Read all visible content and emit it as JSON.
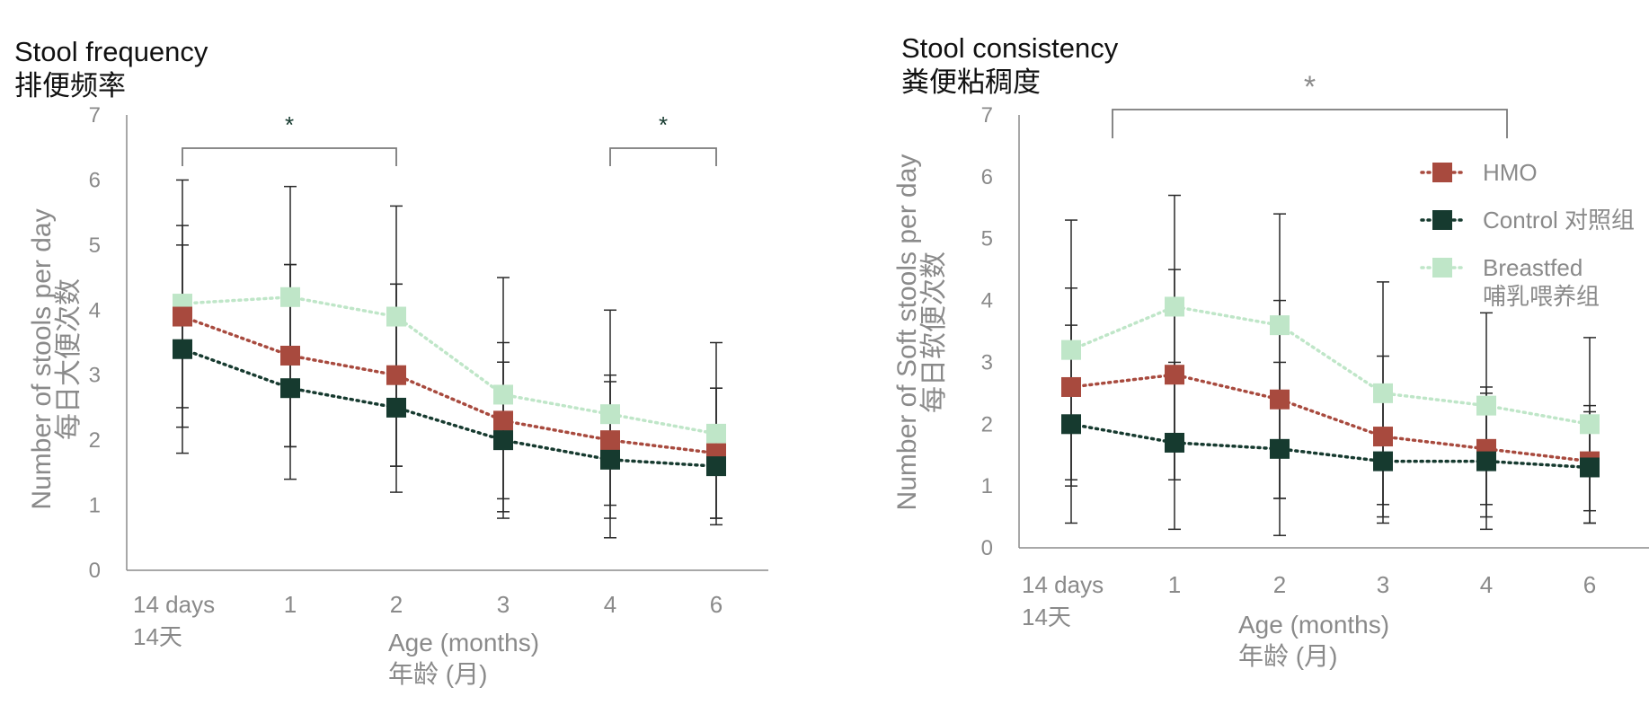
{
  "colors": {
    "hmo": "#a84a3e",
    "control": "#163a2f",
    "breastfed": "#bfe6c8",
    "axis_text": "#8a8a8a",
    "title_text": "#111111",
    "error_bar": "#2a2a2a",
    "bracket": "#7a7a7a"
  },
  "chart_data": [
    {
      "type": "line",
      "title": "Stool frequency",
      "title_cn": "排便频率",
      "xlabel": "Age (months)",
      "xlabel_cn": "年龄 (月)",
      "ylabel": "Number of stools per day",
      "ylabel_cn": "每日大便次数",
      "categories": [
        {
          "en": "14 days",
          "cn": "14天"
        },
        {
          "en": "1",
          "cn": ""
        },
        {
          "en": "2",
          "cn": ""
        },
        {
          "en": "3",
          "cn": ""
        },
        {
          "en": "4",
          "cn": ""
        },
        {
          "en": "6",
          "cn": ""
        }
      ],
      "ylim": [
        0,
        7
      ],
      "yticks": [
        "0",
        "1",
        "2",
        "3",
        "4",
        "5",
        "6",
        "7"
      ],
      "grid": false,
      "series": [
        {
          "key": "breastfed",
          "values": [
            4.1,
            4.2,
            3.9,
            2.7,
            2.4,
            2.1
          ],
          "err_low": [
            1.8,
            1.4,
            1.2,
            0.8,
            0.5,
            0.7
          ],
          "err_high": [
            6.0,
            5.9,
            5.6,
            4.5,
            4.0,
            3.5
          ]
        },
        {
          "key": "hmo",
          "values": [
            3.9,
            3.3,
            3.0,
            2.3,
            2.0,
            1.8
          ],
          "err_low": [
            2.2,
            1.9,
            1.6,
            0.9,
            1.0,
            0.8
          ],
          "err_high": [
            5.3,
            4.7,
            4.4,
            3.5,
            3.0,
            2.8
          ]
        },
        {
          "key": "control",
          "values": [
            3.4,
            2.8,
            2.5,
            2.0,
            1.7,
            1.6
          ],
          "err_low": [
            2.5,
            1.9,
            1.6,
            1.1,
            0.8,
            0.8
          ],
          "err_high": [
            5.0,
            4.7,
            4.4,
            3.2,
            2.9,
            2.8
          ]
        }
      ],
      "brackets": [
        {
          "from": 0,
          "to": 2,
          "label": "*"
        },
        {
          "from": 4,
          "to": 5,
          "label": "*"
        }
      ]
    },
    {
      "type": "line",
      "title": "Stool consistency",
      "title_cn": "粪便粘稠度",
      "xlabel": "Age (months)",
      "xlabel_cn": "年龄 (月)",
      "ylabel": "Number of Soft stools per day",
      "ylabel_cn": "每日软便次数",
      "categories": [
        {
          "en": "14 days",
          "cn": "14天"
        },
        {
          "en": "1",
          "cn": ""
        },
        {
          "en": "2",
          "cn": ""
        },
        {
          "en": "3",
          "cn": ""
        },
        {
          "en": "4",
          "cn": ""
        },
        {
          "en": "6",
          "cn": ""
        }
      ],
      "ylim": [
        0,
        7
      ],
      "yticks": [
        "0",
        "1",
        "2",
        "3",
        "4",
        "5",
        "6",
        "7"
      ],
      "grid": false,
      "legend_position": "right",
      "series": [
        {
          "key": "breastfed",
          "name": "Breastfed",
          "name_cn": "哺乳喂养组",
          "values": [
            3.2,
            3.9,
            3.6,
            2.5,
            2.3,
            2.0
          ],
          "err_low": [
            1.0,
            1.1,
            0.8,
            0.7,
            0.7,
            0.6
          ],
          "err_high": [
            5.3,
            5.7,
            5.4,
            4.3,
            3.8,
            3.4
          ]
        },
        {
          "key": "hmo",
          "name": "HMO",
          "name_cn": "",
          "values": [
            2.6,
            2.8,
            2.4,
            1.8,
            1.6,
            1.4
          ],
          "err_low": [
            1.1,
            1.1,
            0.8,
            0.5,
            0.5,
            0.4
          ],
          "err_high": [
            4.2,
            4.5,
            4.0,
            3.1,
            2.6,
            2.3
          ]
        },
        {
          "key": "control",
          "name": "Control",
          "name_cn": "对照组",
          "values": [
            2.0,
            1.7,
            1.6,
            1.4,
            1.4,
            1.3
          ],
          "err_low": [
            0.4,
            0.3,
            0.2,
            0.4,
            0.3,
            0.4
          ],
          "err_high": [
            3.6,
            3.0,
            3.0,
            2.4,
            2.5,
            2.2
          ]
        }
      ],
      "legend_order": [
        "hmo",
        "control",
        "breastfed"
      ],
      "brackets": [
        {
          "from": 0.4,
          "to": 4.2,
          "label": "*"
        }
      ]
    }
  ]
}
